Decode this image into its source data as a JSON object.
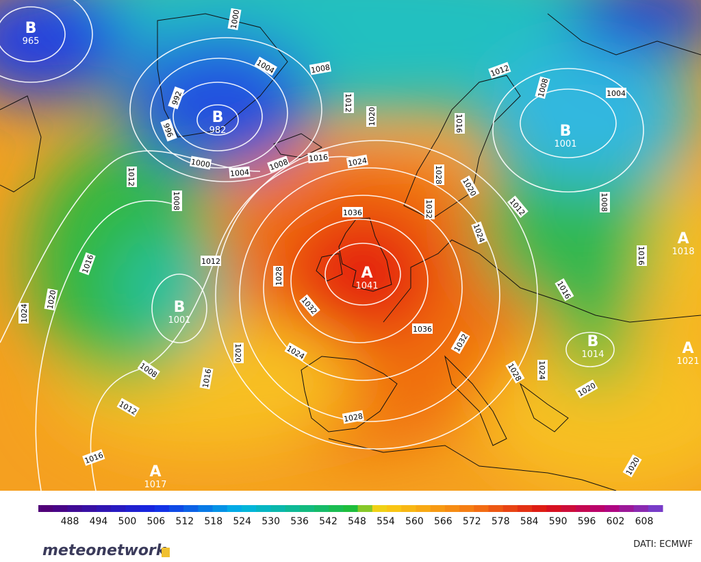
{
  "map": {
    "pressure_centers": [
      {
        "letter": "B",
        "value": "965"
      },
      {
        "letter": "B",
        "value": "982"
      },
      {
        "letter": "B",
        "value": "1001"
      },
      {
        "letter": "A",
        "value": "1041"
      },
      {
        "letter": "B",
        "value": "1001"
      },
      {
        "letter": "B",
        "value": "1014"
      },
      {
        "letter": "A",
        "value": "1017"
      },
      {
        "letter": "A",
        "value": "1018"
      },
      {
        "letter": "A",
        "value": "1021"
      }
    ],
    "isobar_labels": [
      "1000",
      "1004",
      "1008",
      "992",
      "996",
      "1000",
      "1004",
      "1008",
      "1016",
      "1024",
      "1020",
      "1012",
      "1012",
      "1008",
      "1004",
      "1016",
      "1028",
      "1032",
      "1036",
      "1020",
      "1024",
      "1012",
      "1008",
      "1016",
      "1016",
      "1012",
      "1008",
      "1012",
      "1016",
      "1020",
      "1024",
      "1028",
      "1032",
      "1036",
      "1032",
      "1024",
      "1020",
      "1016",
      "1008",
      "1012",
      "1016",
      "1028",
      "1028",
      "1024",
      "1020",
      "1020"
    ]
  },
  "colorbar": {
    "labels": [
      488,
      494,
      500,
      506,
      512,
      518,
      524,
      530,
      536,
      542,
      548,
      554,
      560,
      566,
      572,
      578,
      584,
      590,
      596,
      602,
      608
    ]
  },
  "footer": {
    "brand": "meteonetwork",
    "source": "DATI:  ECMWF"
  }
}
